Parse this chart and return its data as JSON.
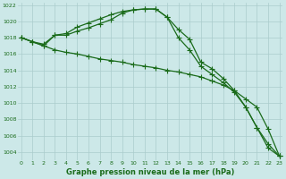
{
  "x": [
    0,
    1,
    2,
    3,
    4,
    5,
    6,
    7,
    8,
    9,
    10,
    11,
    12,
    13,
    14,
    15,
    16,
    17,
    18,
    19,
    20,
    21,
    22,
    23
  ],
  "line1": [
    1018,
    1017.5,
    1017.2,
    1018.3,
    1018.5,
    1019.3,
    1019.8,
    1020.3,
    1020.8,
    1021.2,
    1021.4,
    1021.5,
    1021.5,
    1020.5,
    1019.0,
    1017.8,
    1015.0,
    1014.2,
    1013.0,
    1011.5,
    1009.5,
    1007.0,
    1005.0,
    1003.5
  ],
  "line2": [
    1018,
    1017.5,
    1017.0,
    1018.3,
    1018.3,
    1018.8,
    1019.2,
    1019.7,
    1020.2,
    1021.0,
    1021.4,
    1021.5,
    1021.5,
    1020.5,
    1018.0,
    1016.5,
    1014.5,
    1013.5,
    1012.5,
    1011.3,
    1009.5,
    1007.0,
    1004.5,
    1003.5
  ],
  "line3": [
    1018,
    1017.5,
    1017.0,
    1016.5,
    1016.2,
    1016.0,
    1015.7,
    1015.4,
    1015.2,
    1015.0,
    1014.7,
    1014.5,
    1014.3,
    1014.0,
    1013.8,
    1013.5,
    1013.2,
    1012.7,
    1012.2,
    1011.5,
    1010.5,
    1009.5,
    1006.8,
    1003.5
  ],
  "bg_color": "#cce8e8",
  "grid_color": "#aacccc",
  "line_color": "#1a6b1a",
  "xlabel": "Graphe pression niveau de la mer (hPa)",
  "ylim_min": 1003,
  "ylim_max": 1022,
  "xlim_min": 0,
  "xlim_max": 23,
  "yticks": [
    1004,
    1006,
    1008,
    1010,
    1012,
    1014,
    1016,
    1018,
    1020,
    1022
  ],
  "xticks": [
    0,
    1,
    2,
    3,
    4,
    5,
    6,
    7,
    8,
    9,
    10,
    11,
    12,
    13,
    14,
    15,
    16,
    17,
    18,
    19,
    20,
    21,
    22,
    23
  ],
  "xtick_labels": [
    "0",
    "1",
    "2",
    "3",
    "4",
    "5",
    "6",
    "7",
    "8",
    "9",
    "10",
    "11",
    "12",
    "13",
    "14",
    "15",
    "16",
    "17",
    "18",
    "19",
    "20",
    "21",
    "22",
    "23"
  ]
}
